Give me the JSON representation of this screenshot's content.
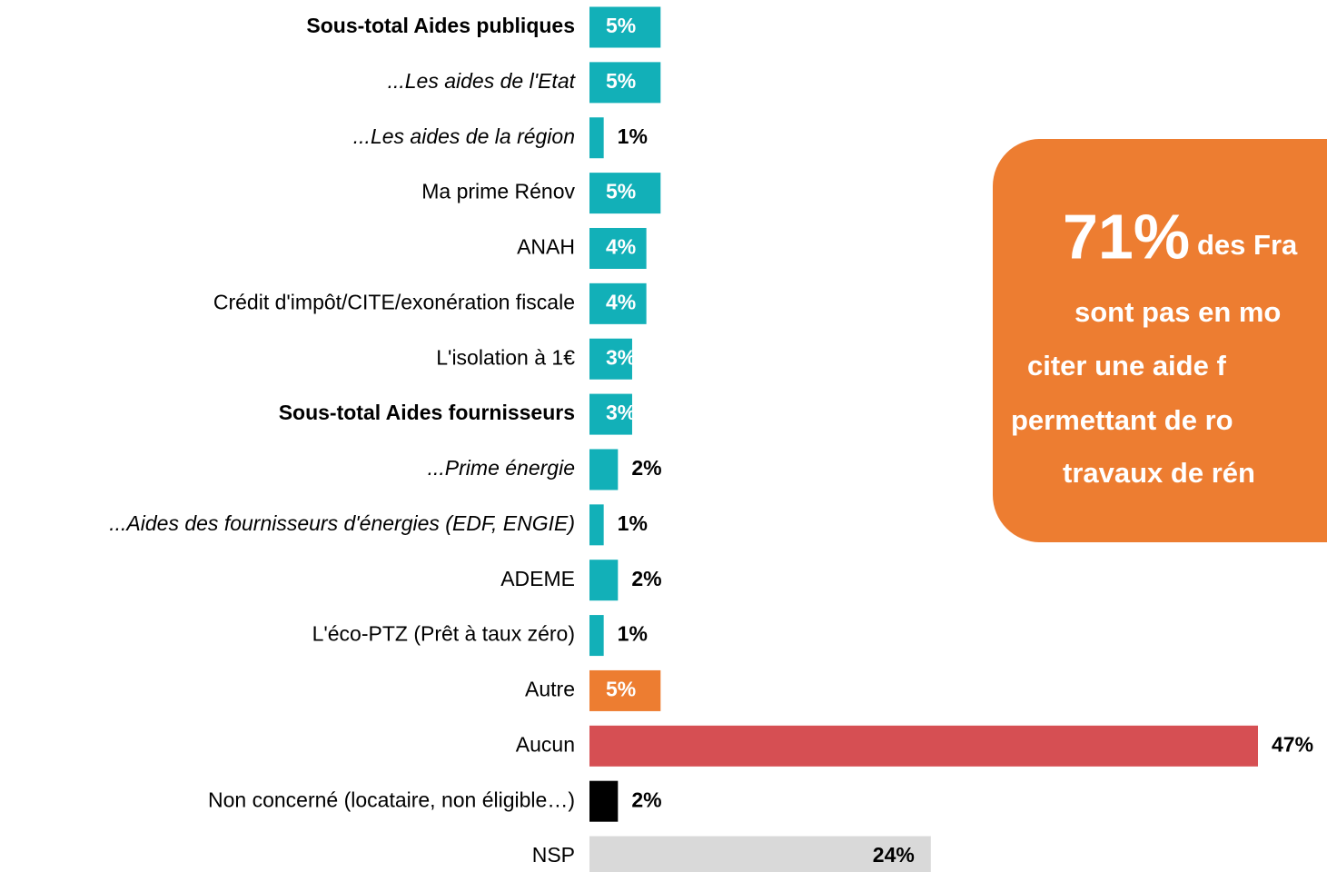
{
  "chart_data": {
    "type": "hbar",
    "categories": [
      "Sous-total Aides publiques",
      "...Les aides de l'Etat",
      "...Les aides de la région",
      "Ma prime Rénov",
      "ANAH",
      "Crédit d'impôt/CITE/exonération fiscale",
      "L'isolation à 1€",
      "Sous-total Aides fournisseurs",
      "...Prime énergie",
      "...Aides des fournisseurs d'énergies (EDF, ENGIE)",
      "ADEME",
      "L'éco-PTZ (Prêt à taux zéro)",
      "Autre",
      "Aucun",
      "Non concerné (locataire, non éligible…)",
      "NSP"
    ],
    "category_styles": [
      "bold",
      "italic",
      "italic",
      "normal",
      "normal",
      "normal",
      "normal",
      "bold",
      "italic",
      "italic",
      "normal",
      "normal",
      "normal",
      "normal",
      "normal",
      "normal"
    ],
    "values": [
      5,
      5,
      1,
      5,
      4,
      4,
      3,
      3,
      2,
      1,
      2,
      1,
      5,
      47,
      2,
      24
    ],
    "value_labels": [
      "5%",
      "5%",
      "1%",
      "5%",
      "4%",
      "4%",
      "3%",
      "3%",
      "2%",
      "1%",
      "2%",
      "1%",
      "5%",
      "47%",
      "2%",
      "24%"
    ],
    "colors": [
      "#12b0b8",
      "#12b0b8",
      "#12b0b8",
      "#12b0b8",
      "#12b0b8",
      "#12b0b8",
      "#12b0b8",
      "#12b0b8",
      "#12b0b8",
      "#12b0b8",
      "#12b0b8",
      "#12b0b8",
      "#ed7d31",
      "#d64f53",
      "#000000",
      "#d9d9d9"
    ],
    "callout": {
      "big": "71%",
      "lines": [
        "des Fra",
        "sont pas en mo",
        "citer une aide f",
        "permettant de ro",
        "travaux de rén"
      ]
    }
  }
}
